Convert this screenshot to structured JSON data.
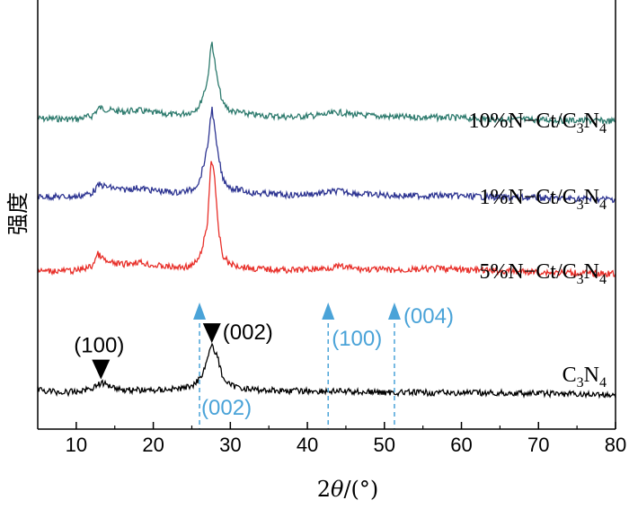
{
  "chart_data": {
    "type": "line",
    "xlabel_prefix": "2",
    "xlabel_theta": "θ",
    "xlabel_suffix": "/(°)",
    "ylabel": "强度",
    "xlim": [
      5,
      80
    ],
    "xticks": [
      10,
      20,
      30,
      40,
      50,
      60,
      70,
      80
    ],
    "grid": false,
    "series": [
      {
        "name": "10%N−Ct/C3N4",
        "label_main": "10%N−Ct/C",
        "label_sub1": "3",
        "label_mid": "N",
        "label_sub2": "4",
        "color": "#2e7b6e",
        "points": [
          [
            5,
            0.05
          ],
          [
            10,
            0.04
          ],
          [
            12,
            0.1
          ],
          [
            13,
            0.26
          ],
          [
            14,
            0.22
          ],
          [
            16,
            0.18
          ],
          [
            18,
            0.21
          ],
          [
            20,
            0.16
          ],
          [
            23,
            0.12
          ],
          [
            25,
            0.18
          ],
          [
            26,
            0.3
          ],
          [
            27,
            0.75
          ],
          [
            27.6,
            1.55
          ],
          [
            28.3,
            0.8
          ],
          [
            29,
            0.35
          ],
          [
            30,
            0.2
          ],
          [
            33,
            0.12
          ],
          [
            38,
            0.08
          ],
          [
            42,
            0.12
          ],
          [
            44,
            0.17
          ],
          [
            47,
            0.11
          ],
          [
            52,
            0.08
          ],
          [
            58,
            0.07
          ],
          [
            65,
            0.04
          ],
          [
            80,
            0.0
          ]
        ]
      },
      {
        "name": "1%N−Ct/C3N4",
        "label_main": "1%N−Ct/C",
        "label_sub1": "3",
        "label_mid": "N",
        "label_sub2": "4",
        "color": "#2e3592",
        "points": [
          [
            5,
            0.05
          ],
          [
            10,
            0.05
          ],
          [
            12,
            0.12
          ],
          [
            13,
            0.28
          ],
          [
            14,
            0.24
          ],
          [
            16,
            0.18
          ],
          [
            18,
            0.22
          ],
          [
            20,
            0.17
          ],
          [
            23,
            0.13
          ],
          [
            25,
            0.18
          ],
          [
            26,
            0.35
          ],
          [
            27,
            0.95
          ],
          [
            27.6,
            1.78
          ],
          [
            28.3,
            0.95
          ],
          [
            29,
            0.4
          ],
          [
            30,
            0.22
          ],
          [
            33,
            0.12
          ],
          [
            38,
            0.08
          ],
          [
            42,
            0.12
          ],
          [
            44,
            0.16
          ],
          [
            47,
            0.1
          ],
          [
            52,
            0.07
          ],
          [
            58,
            0.07
          ],
          [
            65,
            0.04
          ],
          [
            80,
            0.0
          ]
        ]
      },
      {
        "name": "5%N−Ct/C3N4",
        "label_main": "5%N−Ct/C",
        "label_sub1": "3",
        "label_mid": "N",
        "label_sub2": "4",
        "color": "#e8302a",
        "points": [
          [
            5,
            0.05
          ],
          [
            10,
            0.06
          ],
          [
            12,
            0.14
          ],
          [
            12.8,
            0.38
          ],
          [
            14,
            0.22
          ],
          [
            16,
            0.18
          ],
          [
            18,
            0.23
          ],
          [
            20,
            0.16
          ],
          [
            23,
            0.12
          ],
          [
            25,
            0.15
          ],
          [
            26,
            0.3
          ],
          [
            27,
            0.9
          ],
          [
            27.5,
            2.2
          ],
          [
            27.9,
            2.0
          ],
          [
            28.4,
            0.9
          ],
          [
            29,
            0.35
          ],
          [
            30,
            0.18
          ],
          [
            33,
            0.1
          ],
          [
            38,
            0.07
          ],
          [
            42,
            0.1
          ],
          [
            44,
            0.14
          ],
          [
            47,
            0.09
          ],
          [
            52,
            0.07
          ],
          [
            57,
            0.1
          ],
          [
            65,
            0.05
          ],
          [
            80,
            0.0
          ]
        ]
      },
      {
        "name": "C3N4",
        "label_main": "C",
        "label_sub1": "3",
        "label_mid": "N",
        "label_sub2": "4",
        "color": "#000000",
        "points": [
          [
            5,
            0.1
          ],
          [
            8,
            0.05
          ],
          [
            10,
            0.06
          ],
          [
            12,
            0.13
          ],
          [
            13.2,
            0.23
          ],
          [
            14.5,
            0.18
          ],
          [
            16,
            0.1
          ],
          [
            20,
            0.09
          ],
          [
            24,
            0.13
          ],
          [
            25.5,
            0.22
          ],
          [
            26.5,
            0.45
          ],
          [
            27.5,
            0.95
          ],
          [
            28.2,
            0.8
          ],
          [
            29,
            0.35
          ],
          [
            30,
            0.18
          ],
          [
            33,
            0.1
          ],
          [
            38,
            0.08
          ],
          [
            44,
            0.07
          ],
          [
            50,
            0.05
          ],
          [
            60,
            0.04
          ],
          [
            70,
            0.03
          ],
          [
            80,
            0.0
          ]
        ]
      }
    ],
    "annotations": [
      {
        "text": "(100)",
        "x": 13.2,
        "series": "C3N4",
        "style": "black-triangle"
      },
      {
        "text": "(002)",
        "x": 27.6,
        "series": "C3N4",
        "style": "black-triangle"
      },
      {
        "text": "(002)",
        "x": 26.0,
        "style": "blue-dashed-arrow"
      },
      {
        "text": "(100)",
        "x": 42.7,
        "style": "blue-dashed-arrow"
      },
      {
        "text": "(004)",
        "x": 51.3,
        "style": "blue-dashed-arrow"
      }
    ],
    "colors": {
      "reference": "#4aa3d8"
    }
  }
}
